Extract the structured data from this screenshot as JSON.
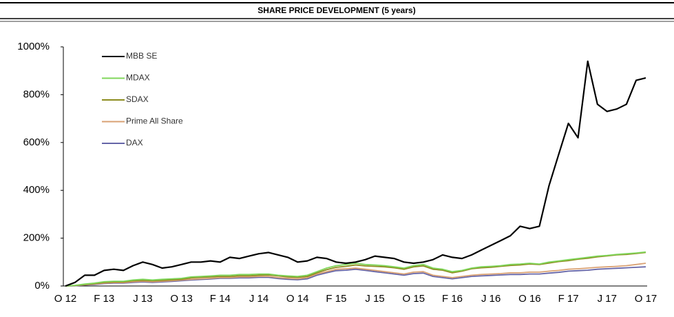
{
  "chart_data": {
    "type": "line",
    "title": "SHARE PRICE DEVELOPMENT (5 years)",
    "categories": [
      "O 12",
      null,
      null,
      null,
      "F 13",
      null,
      null,
      null,
      "J 13",
      null,
      null,
      null,
      "O 13",
      null,
      null,
      null,
      "F 14",
      null,
      null,
      null,
      "J 14",
      null,
      null,
      null,
      "O 14",
      null,
      null,
      null,
      "F 15",
      null,
      null,
      null,
      "J 15",
      null,
      null,
      null,
      "O 15",
      null,
      null,
      null,
      "F 16",
      null,
      null,
      null,
      "J 16",
      null,
      null,
      null,
      "O 16",
      null,
      null,
      null,
      "F 17",
      null,
      null,
      null,
      "J 17",
      null,
      null,
      null,
      "O 17"
    ],
    "series": [
      {
        "name": "MBB SE",
        "color": "#000000",
        "values": [
          0,
          15,
          45,
          45,
          65,
          70,
          65,
          85,
          100,
          90,
          75,
          80,
          90,
          100,
          100,
          105,
          100,
          120,
          115,
          125,
          135,
          140,
          130,
          120,
          100,
          105,
          120,
          115,
          100,
          95,
          100,
          110,
          125,
          120,
          115,
          100,
          95,
          100,
          110,
          130,
          120,
          115,
          130,
          150,
          170,
          190,
          210,
          250,
          240,
          250,
          420,
          550,
          680,
          620,
          940,
          760,
          730,
          740,
          760,
          860,
          870
        ]
      },
      {
        "name": "MDAX",
        "color": "#7fd65a",
        "values": [
          0,
          3,
          8,
          12,
          18,
          20,
          20,
          25,
          28,
          25,
          28,
          30,
          32,
          38,
          40,
          42,
          45,
          45,
          48,
          48,
          50,
          50,
          45,
          42,
          40,
          45,
          60,
          75,
          85,
          90,
          95,
          90,
          88,
          85,
          80,
          75,
          85,
          90,
          75,
          70,
          60,
          65,
          75,
          80,
          82,
          85,
          90,
          92,
          95,
          92,
          100,
          105,
          110,
          115,
          120,
          125,
          128,
          132,
          135,
          138,
          142
        ]
      },
      {
        "name": "SDAX",
        "color": "#8c8c1e",
        "values": [
          0,
          2,
          6,
          10,
          15,
          17,
          17,
          22,
          24,
          22,
          24,
          26,
          28,
          34,
          36,
          38,
          40,
          40,
          43,
          43,
          45,
          46,
          42,
          38,
          36,
          40,
          55,
          68,
          78,
          82,
          88,
          84,
          82,
          80,
          76,
          70,
          80,
          84,
          70,
          66,
          55,
          62,
          72,
          76,
          78,
          82,
          86,
          88,
          92,
          90,
          96,
          102,
          106,
          112,
          116,
          122,
          126,
          130,
          132,
          136,
          140
        ]
      },
      {
        "name": "Prime All Share",
        "color": "#d9a173",
        "values": [
          0,
          2,
          5,
          8,
          12,
          14,
          14,
          18,
          20,
          18,
          20,
          22,
          25,
          28,
          30,
          32,
          35,
          35,
          38,
          38,
          40,
          40,
          35,
          32,
          30,
          35,
          50,
          60,
          70,
          72,
          75,
          70,
          65,
          60,
          55,
          50,
          58,
          60,
          45,
          40,
          35,
          40,
          45,
          48,
          50,
          52,
          55,
          55,
          58,
          58,
          62,
          65,
          70,
          72,
          75,
          78,
          80,
          82,
          85,
          90,
          95
        ]
      },
      {
        "name": "DAX",
        "color": "#6565a8",
        "values": [
          0,
          1,
          4,
          6,
          10,
          12,
          12,
          15,
          17,
          15,
          17,
          19,
          22,
          25,
          27,
          29,
          32,
          32,
          34,
          34,
          36,
          36,
          31,
          28,
          26,
          30,
          45,
          55,
          64,
          66,
          70,
          65,
          60,
          55,
          50,
          45,
          52,
          54,
          40,
          35,
          30,
          35,
          40,
          42,
          44,
          46,
          48,
          48,
          50,
          50,
          54,
          57,
          62,
          64,
          66,
          70,
          72,
          74,
          76,
          78,
          80
        ]
      }
    ],
    "ylim": [
      0,
      1000
    ],
    "yticks": [
      {
        "value": 0,
        "label": "0%"
      },
      {
        "value": 200,
        "label": "200%"
      },
      {
        "value": 400,
        "label": "400%"
      },
      {
        "value": 600,
        "label": "600%"
      },
      {
        "value": 800,
        "label": "800%"
      },
      {
        "value": 1000,
        "label": "1000%"
      }
    ],
    "legend": "upper left"
  }
}
